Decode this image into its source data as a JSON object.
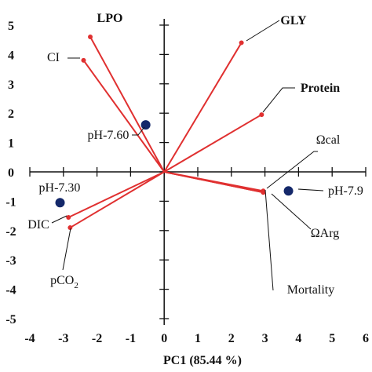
{
  "chart_data": {
    "type": "scatter",
    "title": "",
    "xlabel": "PC1 (85.44 %)",
    "ylabel": "",
    "xlim": [
      -4,
      6
    ],
    "ylim": [
      -5,
      5
    ],
    "x_ticks": [
      "-4",
      "-3",
      "-2",
      "-1",
      "0",
      "1",
      "2",
      "3",
      "4",
      "5",
      "6"
    ],
    "y_ticks": [
      "5",
      "4",
      "3",
      "2",
      "1",
      "0",
      "-1",
      "-2",
      "-3",
      "-4",
      "-5"
    ],
    "vector_color": "#e03030",
    "score_color": "#14286a",
    "vectors": [
      {
        "label": "LPO",
        "bold": true,
        "x": -2.2,
        "y": 4.6
      },
      {
        "label": "CI",
        "bold": false,
        "x": -2.4,
        "y": 3.8
      },
      {
        "label": "GLY",
        "bold": true,
        "x": 2.3,
        "y": 4.4
      },
      {
        "label": "Protein",
        "bold": true,
        "x": 2.9,
        "y": 1.95
      },
      {
        "label": "Ωcal",
        "bold": false,
        "x": 2.95,
        "y": -0.65
      },
      {
        "label": "ΩArg",
        "bold": false,
        "x": 2.95,
        "y": -0.7
      },
      {
        "label": "Mortality",
        "bold": false,
        "x": 2.95,
        "y": -0.7
      },
      {
        "label": "DIC",
        "bold": false,
        "x": -2.85,
        "y": -1.55
      },
      {
        "label": "pCO",
        "sub": "2",
        "bold": false,
        "x": -2.8,
        "y": -1.9
      }
    ],
    "scores": [
      {
        "label": "pH-7.60",
        "x": -0.55,
        "y": 1.6
      },
      {
        "label": "pH-7.30",
        "x": -3.1,
        "y": -1.05
      },
      {
        "label": "pH-7.9",
        "x": 3.7,
        "y": -0.65
      }
    ]
  }
}
